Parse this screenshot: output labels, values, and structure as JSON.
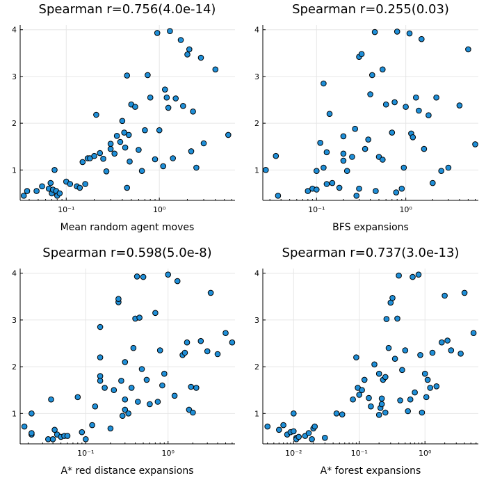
{
  "marker_color": "#1f8fd8",
  "chart_data": [
    {
      "type": "scatter",
      "title": "Spearman r=0.756(4.0e-14)",
      "xlabel": "Mean random agent moves",
      "ylabel": "",
      "xscale": "log",
      "xlim": [
        0.032,
        6.5
      ],
      "ylim": [
        0.35,
        4.1
      ],
      "xticks": [
        {
          "v": 0.1,
          "label": "10⁻¹"
        },
        {
          "v": 1,
          "label": "10⁰"
        }
      ],
      "yticks": [
        {
          "v": 1,
          "label": "1"
        },
        {
          "v": 2,
          "label": "2"
        },
        {
          "v": 3,
          "label": "3"
        },
        {
          "v": 4,
          "label": "4"
        }
      ],
      "grid": true,
      "x": [
        0.035,
        0.038,
        0.048,
        0.055,
        0.065,
        0.068,
        0.07,
        0.072,
        0.075,
        0.078,
        0.08,
        0.085,
        0.1,
        0.11,
        0.13,
        0.14,
        0.15,
        0.16,
        0.17,
        0.18,
        0.2,
        0.21,
        0.23,
        0.25,
        0.27,
        0.3,
        0.3,
        0.33,
        0.35,
        0.38,
        0.4,
        0.42,
        0.43,
        0.45,
        0.45,
        0.47,
        0.48,
        0.5,
        0.55,
        0.6,
        0.65,
        0.7,
        0.75,
        0.8,
        0.9,
        0.95,
        1.0,
        1.1,
        1.15,
        1.2,
        1.25,
        1.3,
        1.4,
        1.5,
        1.7,
        1.8,
        2.0,
        2.1,
        2.2,
        2.3,
        2.5,
        2.8,
        3.0,
        4.0,
        5.5
      ],
      "y": [
        0.45,
        0.55,
        0.55,
        0.65,
        0.6,
        0.72,
        0.5,
        0.58,
        1.0,
        0.55,
        0.45,
        0.5,
        0.75,
        0.7,
        0.65,
        0.62,
        1.17,
        0.7,
        1.25,
        1.25,
        1.3,
        2.18,
        1.36,
        1.24,
        0.97,
        1.45,
        1.56,
        1.35,
        1.73,
        1.6,
        2.05,
        1.8,
        1.48,
        3.02,
        0.62,
        1.75,
        1.18,
        2.4,
        2.35,
        1.43,
        0.98,
        1.85,
        3.03,
        2.55,
        1.23,
        3.93,
        1.85,
        1.08,
        2.72,
        2.55,
        2.33,
        3.97,
        1.25,
        2.53,
        3.78,
        2.37,
        3.47,
        3.58,
        1.4,
        2.25,
        1.05,
        3.4,
        1.57,
        3.15,
        1.75
      ]
    },
    {
      "type": "scatter",
      "title": "Spearman r=0.255(0.03)",
      "xlabel": "BFS expansions",
      "ylabel": "",
      "xscale": "log",
      "xlim": [
        0.025,
        6.5
      ],
      "ylim": [
        0.35,
        4.1
      ],
      "xticks": [
        {
          "v": 0.1,
          "label": "10⁻¹"
        },
        {
          "v": 1,
          "label": "10⁰"
        }
      ],
      "yticks": [
        {
          "v": 1,
          "label": "1"
        },
        {
          "v": 2,
          "label": "2"
        },
        {
          "v": 3,
          "label": "3"
        },
        {
          "v": 4,
          "label": "4"
        }
      ],
      "grid": true,
      "x": [
        0.027,
        0.035,
        0.037,
        0.08,
        0.09,
        0.1,
        0.1,
        0.11,
        0.12,
        0.12,
        0.13,
        0.13,
        0.14,
        0.15,
        0.18,
        0.2,
        0.2,
        0.2,
        0.22,
        0.25,
        0.27,
        0.28,
        0.3,
        0.3,
        0.32,
        0.35,
        0.38,
        0.4,
        0.42,
        0.45,
        0.46,
        0.5,
        0.55,
        0.55,
        0.6,
        0.7,
        0.75,
        0.78,
        0.8,
        0.9,
        0.95,
        1.0,
        1.1,
        1.15,
        1.2,
        1.3,
        1.4,
        1.5,
        1.6,
        1.8,
        2.0,
        2.2,
        2.5,
        3.0,
        4.0,
        5.0,
        6.0
      ],
      "y": [
        1.0,
        1.3,
        0.45,
        0.55,
        0.6,
        0.58,
        0.98,
        1.58,
        2.85,
        1.05,
        0.7,
        1.38,
        2.2,
        0.72,
        0.62,
        1.2,
        1.35,
        1.72,
        0.98,
        1.28,
        1.88,
        0.45,
        0.6,
        3.42,
        3.48,
        1.45,
        1.65,
        2.62,
        3.03,
        3.95,
        0.55,
        1.28,
        1.22,
        3.15,
        2.4,
        1.8,
        2.45,
        0.52,
        3.96,
        0.6,
        1.05,
        2.35,
        3.92,
        1.78,
        1.7,
        2.55,
        2.27,
        3.8,
        1.45,
        2.17,
        0.72,
        2.55,
        0.98,
        1.05,
        2.38,
        3.58,
        1.55
      ]
    },
    {
      "type": "scatter",
      "title": "Spearman r=0.598(5.0e-8)",
      "xlabel": "A* red distance expansions",
      "ylabel": "",
      "xscale": "log",
      "xlim": [
        0.016,
        6.5
      ],
      "ylim": [
        0.35,
        4.1
      ],
      "xticks": [
        {
          "v": 0.1,
          "label": "10⁻¹"
        },
        {
          "v": 1,
          "label": "10⁰"
        }
      ],
      "yticks": [
        {
          "v": 1,
          "label": "1"
        },
        {
          "v": 2,
          "label": "2"
        },
        {
          "v": 3,
          "label": "3"
        },
        {
          "v": 4,
          "label": "4"
        }
      ],
      "grid": true,
      "x": [
        0.018,
        0.022,
        0.022,
        0.022,
        0.035,
        0.038,
        0.04,
        0.042,
        0.045,
        0.05,
        0.055,
        0.06,
        0.08,
        0.09,
        0.1,
        0.12,
        0.13,
        0.15,
        0.15,
        0.15,
        0.15,
        0.17,
        0.2,
        0.22,
        0.25,
        0.25,
        0.27,
        0.28,
        0.3,
        0.3,
        0.3,
        0.33,
        0.36,
        0.38,
        0.4,
        0.42,
        0.43,
        0.45,
        0.48,
        0.5,
        0.55,
        0.6,
        0.7,
        0.75,
        0.8,
        0.85,
        0.9,
        1.0,
        1.2,
        1.3,
        1.5,
        1.6,
        1.7,
        1.8,
        1.9,
        2.0,
        2.2,
        2.5,
        3.0,
        3.3,
        4.0,
        5.0,
        6.0
      ],
      "y": [
        0.72,
        0.55,
        0.58,
        1.0,
        0.45,
        1.3,
        0.45,
        0.65,
        0.55,
        0.5,
        0.52,
        0.52,
        1.35,
        0.6,
        0.45,
        0.75,
        1.15,
        2.85,
        2.2,
        1.8,
        1.7,
        1.55,
        0.68,
        1.5,
        3.38,
        3.45,
        1.7,
        0.95,
        2.1,
        1.08,
        1.3,
        1.0,
        1.55,
        2.4,
        3.03,
        3.93,
        1.25,
        3.05,
        1.95,
        3.92,
        1.72,
        1.2,
        3.15,
        1.25,
        2.35,
        1.6,
        1.85,
        3.97,
        1.38,
        3.83,
        2.25,
        2.3,
        2.52,
        1.08,
        1.57,
        1.02,
        1.55,
        2.55,
        2.33,
        3.58,
        2.27,
        2.72,
        2.52
      ]
    },
    {
      "type": "scatter",
      "title": "Spearman r=0.737(3.0e-13)",
      "xlabel": "A* forest expansions",
      "ylabel": "",
      "xscale": "log",
      "xlim": [
        0.0034,
        6.5
      ],
      "ylim": [
        0.35,
        4.1
      ],
      "xticks": [
        {
          "v": 0.01,
          "label": "10⁻²"
        },
        {
          "v": 0.1,
          "label": "10⁻¹"
        },
        {
          "v": 1,
          "label": "10⁰"
        }
      ],
      "yticks": [
        {
          "v": 1,
          "label": "1"
        },
        {
          "v": 2,
          "label": "2"
        },
        {
          "v": 3,
          "label": "3"
        },
        {
          "v": 4,
          "label": "4"
        }
      ],
      "grid": true,
      "x": [
        0.004,
        0.006,
        0.007,
        0.008,
        0.009,
        0.01,
        0.01,
        0.011,
        0.011,
        0.012,
        0.015,
        0.017,
        0.019,
        0.02,
        0.021,
        0.03,
        0.045,
        0.055,
        0.08,
        0.09,
        0.095,
        0.1,
        0.11,
        0.12,
        0.14,
        0.15,
        0.17,
        0.2,
        0.2,
        0.21,
        0.22,
        0.22,
        0.23,
        0.25,
        0.25,
        0.26,
        0.28,
        0.3,
        0.32,
        0.35,
        0.38,
        0.4,
        0.42,
        0.45,
        0.5,
        0.55,
        0.6,
        0.65,
        0.7,
        0.8,
        0.85,
        0.9,
        1.0,
        1.05,
        1.1,
        1.2,
        1.3,
        1.5,
        1.8,
        2.0,
        2.2,
        2.5,
        3.5,
        4.0,
        5.5
      ],
      "y": [
        0.72,
        0.65,
        0.75,
        0.55,
        0.6,
        0.62,
        1.0,
        0.48,
        0.45,
        0.5,
        0.52,
        0.58,
        0.45,
        0.68,
        0.72,
        0.48,
        1.0,
        0.98,
        1.3,
        2.2,
        1.55,
        1.4,
        1.5,
        1.72,
        1.33,
        1.15,
        2.05,
        1.85,
        0.97,
        1.12,
        1.2,
        1.32,
        1.72,
        1.02,
        1.78,
        3.02,
        2.4,
        3.37,
        3.47,
        2.17,
        3.03,
        3.95,
        1.28,
        1.93,
        2.35,
        1.05,
        1.3,
        3.92,
        1.45,
        3.97,
        2.25,
        1.02,
        1.85,
        1.35,
        1.72,
        1.55,
        2.3,
        1.58,
        2.52,
        3.52,
        2.56,
        2.35,
        2.28,
        3.58,
        2.72
      ]
    }
  ]
}
